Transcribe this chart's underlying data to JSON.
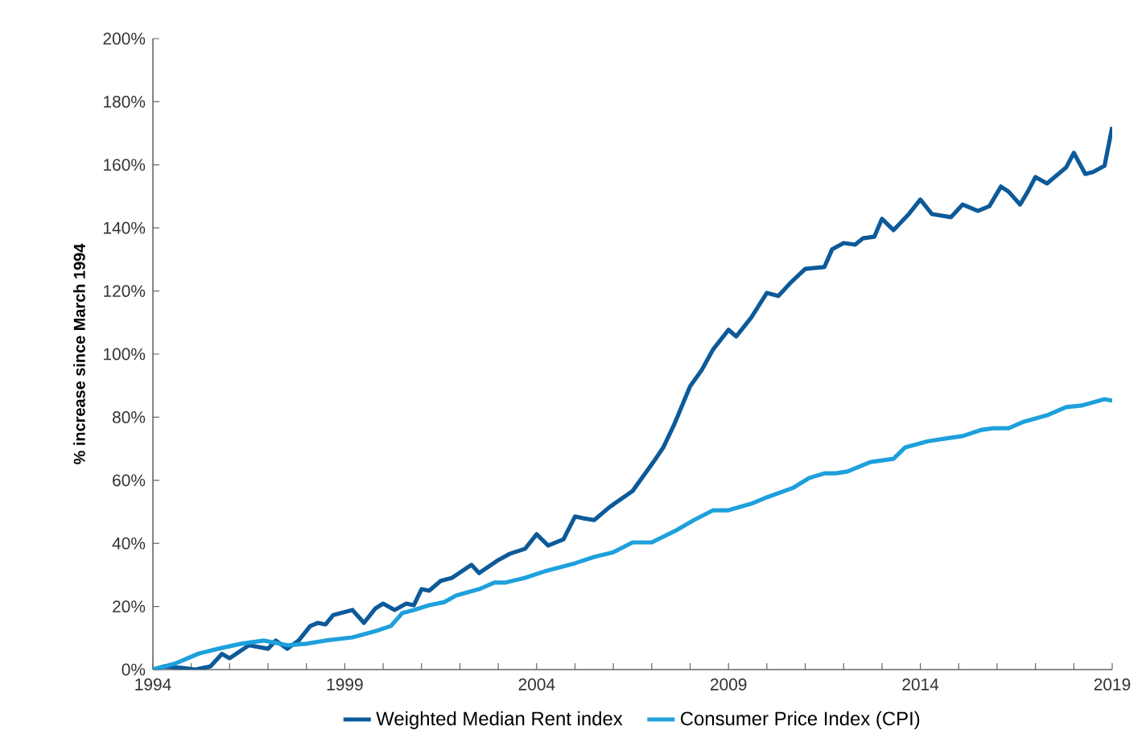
{
  "chart_data": {
    "type": "line",
    "ylabel": "% increase since March 1994",
    "xlim": [
      1994,
      2019
    ],
    "ylim": [
      0,
      200
    ],
    "xticks": [
      1994,
      {
        "value": 1995,
        "label": null
      },
      {
        "value": 1996,
        "label": null
      },
      {
        "value": 1997,
        "label": null
      },
      {
        "value": 1998,
        "label": null
      },
      1999,
      {
        "value": 2000,
        "label": null
      },
      {
        "value": 2001,
        "label": null
      },
      {
        "value": 2002,
        "label": null
      },
      {
        "value": 2003,
        "label": null
      },
      2004,
      {
        "value": 2005,
        "label": null
      },
      {
        "value": 2006,
        "label": null
      },
      {
        "value": 2007,
        "label": null
      },
      {
        "value": 2008,
        "label": null
      },
      2009,
      {
        "value": 2010,
        "label": null
      },
      {
        "value": 2011,
        "label": null
      },
      {
        "value": 2012,
        "label": null
      },
      {
        "value": 2013,
        "label": null
      },
      2014,
      {
        "value": 2015,
        "label": null
      },
      {
        "value": 2016,
        "label": null
      },
      {
        "value": 2017,
        "label": null
      },
      {
        "value": 2018,
        "label": null
      },
      2019
    ],
    "yticks": [
      {
        "value": 0,
        "label": "0%"
      },
      {
        "value": 20,
        "label": "20%"
      },
      {
        "value": 40,
        "label": "40%"
      },
      {
        "value": 60,
        "label": "60%"
      },
      {
        "value": 80,
        "label": "80%"
      },
      {
        "value": 100,
        "label": "100%"
      },
      {
        "value": 120,
        "label": "120%"
      },
      {
        "value": 140,
        "label": "140%"
      },
      {
        "value": 160,
        "label": "160%"
      },
      {
        "value": 180,
        "label": "180%"
      },
      {
        "value": 200,
        "label": "200%"
      }
    ],
    "grid": false,
    "legend": "bottom",
    "marker": "none",
    "line_style": "solid",
    "series": [
      {
        "name": "Weighted Median Rent index",
        "color": "#0d5a99",
        "x": [
          1994.0,
          1994.3,
          1994.8,
          1995.1,
          1995.5,
          1995.8,
          1996.0,
          1996.5,
          1997.0,
          1997.2,
          1997.5,
          1997.8,
          1998.1,
          1998.3,
          1998.5,
          1998.7,
          1999.2,
          1999.5,
          1999.8,
          2000.0,
          2000.3,
          2000.6,
          2000.8,
          2001.0,
          2001.2,
          2001.5,
          2001.8,
          2002.3,
          2002.5,
          2003.0,
          2003.3,
          2003.7,
          2004.0,
          2004.3,
          2004.7,
          2005.0,
          2005.2,
          2005.5,
          2005.9,
          2006.5,
          2006.8,
          2007.1,
          2007.3,
          2007.6,
          2008.0,
          2008.3,
          2008.6,
          2009.0,
          2009.2,
          2009.6,
          2010.0,
          2010.3,
          2010.6,
          2011.0,
          2011.5,
          2011.7,
          2012.0,
          2012.3,
          2012.5,
          2012.8,
          2013.0,
          2013.3,
          2013.7,
          2014.0,
          2014.3,
          2014.8,
          2015.1,
          2015.5,
          2015.8,
          2016.1,
          2016.3,
          2016.6,
          2016.8,
          2017.0,
          2017.3,
          2017.8,
          2018.0,
          2018.3,
          2018.5,
          2018.8,
          2019.0
        ],
        "values": [
          0,
          1,
          0.5,
          0,
          1,
          5,
          3.6,
          7.7,
          6.6,
          9.2,
          6.6,
          9.2,
          13.8,
          14.8,
          14.3,
          17.3,
          18.9,
          14.8,
          19.4,
          20.9,
          18.9,
          20.9,
          20.4,
          25.5,
          25,
          28.1,
          29.1,
          33.2,
          30.6,
          34.7,
          36.7,
          38.3,
          42.9,
          39.3,
          41.3,
          48.5,
          48,
          47.4,
          51.5,
          56.6,
          61.7,
          66.8,
          70.4,
          78.1,
          89.8,
          94.9,
          101.5,
          107.7,
          105.6,
          111.7,
          119.4,
          118.4,
          122.4,
          127,
          127.6,
          133.2,
          135.2,
          134.7,
          136.7,
          137.2,
          142.9,
          139.3,
          144.4,
          149,
          144.4,
          143.4,
          147.4,
          145.4,
          146.9,
          153.1,
          151.5,
          147.4,
          151.5,
          156.1,
          154.1,
          159.2,
          163.8,
          157.1,
          157.7,
          159.7,
          172
        ]
      },
      {
        "name": "Consumer Price Index (CPI)",
        "color": "#1ea0dc",
        "x": [
          1994.0,
          1994.6,
          1995.2,
          1995.7,
          1996.3,
          1996.9,
          1997.5,
          1998.0,
          1998.5,
          1999.2,
          1999.8,
          2000.2,
          2000.5,
          2000.8,
          2001.2,
          2001.6,
          2001.9,
          2002.5,
          2002.9,
          2003.2,
          2003.7,
          2004.2,
          2005.0,
          2005.5,
          2006.0,
          2006.5,
          2007.0,
          2007.6,
          2008.1,
          2008.6,
          2009.0,
          2009.6,
          2010.0,
          2010.7,
          2011.1,
          2011.5,
          2011.8,
          2012.1,
          2012.7,
          2013.3,
          2013.6,
          2014.2,
          2014.8,
          2015.1,
          2015.6,
          2015.9,
          2016.3,
          2016.7,
          2017.3,
          2017.8,
          2018.2,
          2018.8,
          2019.0
        ],
        "values": [
          0,
          2,
          5.1,
          6.6,
          8.2,
          9.2,
          7.7,
          8.2,
          9.2,
          10.2,
          12.2,
          13.8,
          17.9,
          18.9,
          20.4,
          21.4,
          23.5,
          25.5,
          27.6,
          27.6,
          29.1,
          31.1,
          33.7,
          35.7,
          37.2,
          40.3,
          40.3,
          43.9,
          47.4,
          50.5,
          50.5,
          52.6,
          54.6,
          57.7,
          60.7,
          62.2,
          62.2,
          62.8,
          65.8,
          66.8,
          70.4,
          72.4,
          73.5,
          74,
          76,
          76.5,
          76.5,
          78.6,
          80.6,
          83.2,
          83.7,
          85.7,
          85.2
        ]
      }
    ]
  }
}
